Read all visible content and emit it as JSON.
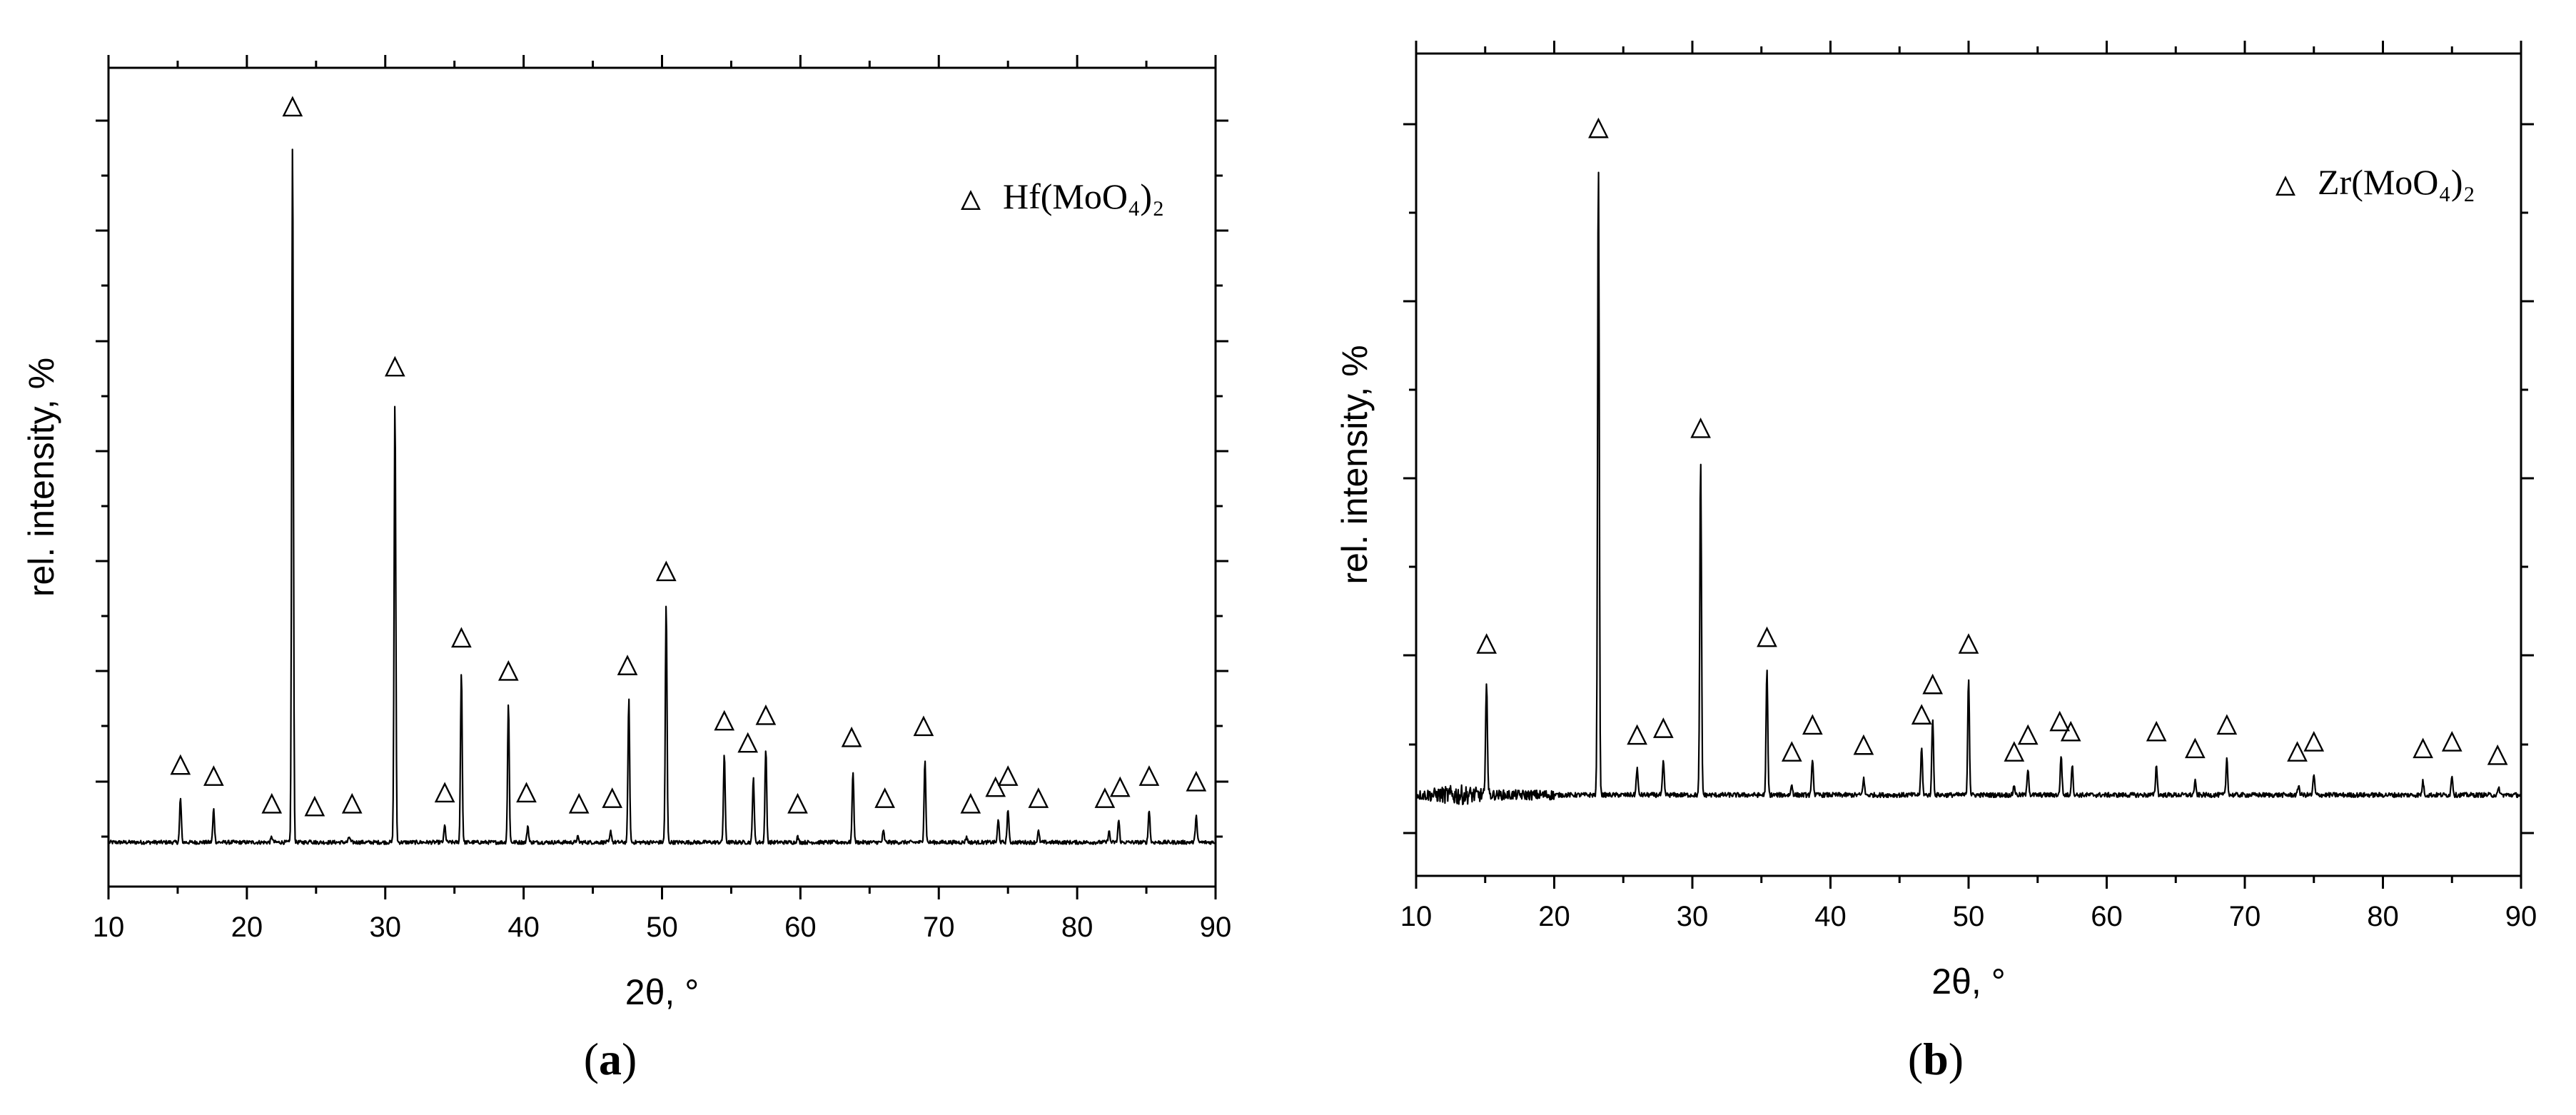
{
  "chart_data": [
    {
      "type": "line",
      "panel_label": "a",
      "legend": {
        "marker": "△",
        "text": "Hf(MoO₄)₂",
        "placement": "top-right"
      },
      "xlabel": "2θ, °",
      "ylabel": "rel. intensity, %",
      "xlim": [
        10,
        90
      ],
      "ylim": [
        -8,
        140
      ],
      "x_ticks": [
        10,
        20,
        30,
        40,
        50,
        60,
        70,
        80,
        90
      ],
      "y_tick_labels_shown": false,
      "grid": false,
      "series": [
        {
          "peaks": [
            [
              15.2,
              8
            ],
            [
              17.6,
              6
            ],
            [
              21.8,
              1
            ],
            [
              23.3,
              127
            ],
            [
              24.6,
              0.5
            ],
            [
              27.4,
              1
            ],
            [
              30.7,
              80
            ],
            [
              34.3,
              3
            ],
            [
              35.5,
              31
            ],
            [
              38.9,
              25
            ],
            [
              40.3,
              3
            ],
            [
              43.9,
              1
            ],
            [
              46.3,
              2
            ],
            [
              47.6,
              26
            ],
            [
              50.3,
              43
            ],
            [
              54.5,
              16
            ],
            [
              56.6,
              12
            ],
            [
              57.5,
              17
            ],
            [
              59.8,
              1
            ],
            [
              63.8,
              13
            ],
            [
              66.0,
              2
            ],
            [
              69.0,
              15
            ],
            [
              72.0,
              1
            ],
            [
              74.3,
              4
            ],
            [
              75.0,
              6
            ],
            [
              77.2,
              2
            ],
            [
              82.3,
              2
            ],
            [
              83.0,
              4
            ],
            [
              85.2,
              6
            ],
            [
              88.6,
              5
            ]
          ]
        }
      ],
      "markers_at_x": [
        15.2,
        17.6,
        21.8,
        23.3,
        24.9,
        27.6,
        30.7,
        34.3,
        35.5,
        38.9,
        40.2,
        44.0,
        46.4,
        47.5,
        50.3,
        54.5,
        56.2,
        57.5,
        59.8,
        63.7,
        66.1,
        68.9,
        72.3,
        74.1,
        75.0,
        77.2,
        82.0,
        83.1,
        85.2,
        88.6
      ]
    },
    {
      "type": "line",
      "panel_label": "b",
      "legend": {
        "marker": "△",
        "text": "Zr(MoO₄)₂",
        "placement": "top-right"
      },
      "xlabel": "2θ, °",
      "ylabel": "rel. intensity, %",
      "xlim": [
        10,
        90
      ],
      "ylim": [
        -12,
        110
      ],
      "x_ticks": [
        10,
        20,
        30,
        40,
        50,
        60,
        70,
        80,
        90
      ],
      "y_tick_labels_shown": false,
      "grid": false,
      "series": [
        {
          "peaks": [
            [
              15.1,
              17.5
            ],
            [
              23.2,
              94
            ],
            [
              26.0,
              4
            ],
            [
              27.9,
              5
            ],
            [
              30.6,
              49.5
            ],
            [
              35.4,
              18.5
            ],
            [
              37.2,
              1.5
            ],
            [
              38.7,
              5.5
            ],
            [
              42.4,
              2.5
            ],
            [
              46.6,
              7
            ],
            [
              47.4,
              11.5
            ],
            [
              50.0,
              17.5
            ],
            [
              53.3,
              1.5
            ],
            [
              54.3,
              4
            ],
            [
              56.7,
              6
            ],
            [
              57.5,
              4.5
            ],
            [
              63.6,
              4.5
            ],
            [
              66.4,
              2
            ],
            [
              68.7,
              5.5
            ],
            [
              73.9,
              1.5
            ],
            [
              75.0,
              3
            ],
            [
              82.9,
              2
            ],
            [
              85.0,
              3
            ],
            [
              88.4,
              1
            ]
          ]
        }
      ],
      "markers_at_x": [
        15.1,
        23.2,
        26.0,
        27.9,
        30.6,
        35.4,
        37.2,
        38.7,
        42.4,
        46.6,
        47.4,
        50.0,
        53.3,
        54.3,
        56.6,
        57.4,
        63.6,
        66.4,
        68.7,
        73.8,
        75.0,
        82.9,
        85.0,
        88.3
      ]
    }
  ]
}
